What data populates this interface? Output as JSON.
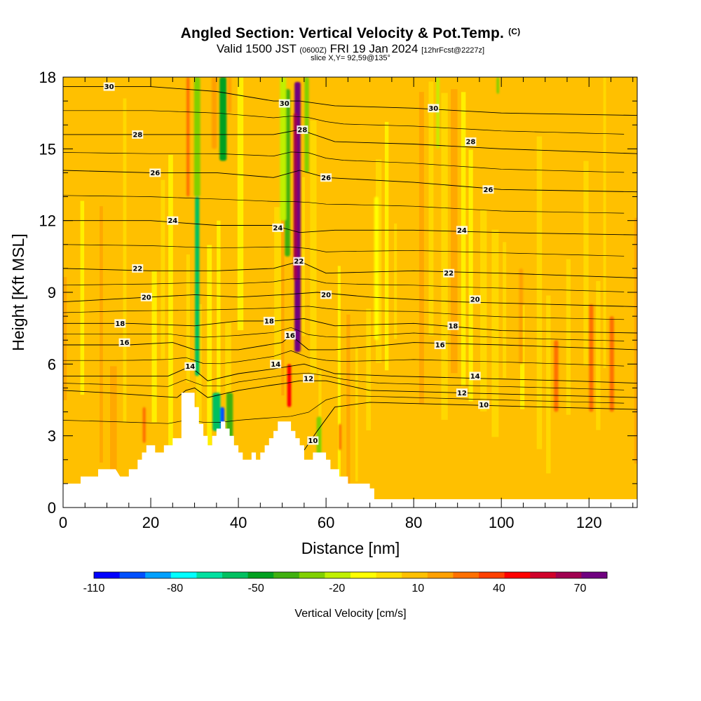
{
  "chart_data": {
    "type": "heatmap",
    "title": "Angled Section: Vertical Velocity & Pot.Temp.",
    "title_mark": "(C)",
    "subtitle_a": "Valid 1500 JST",
    "subtitle_b": "(0600Z)",
    "subtitle_c": "FRI 19 Jan 2024",
    "subtitle_d": "[12hrFcst@2227z]",
    "slice_note": "slice X,Y= 92,59@135°",
    "xlabel": "Distance [nm]",
    "ylabel": "Height [Kft MSL]",
    "xlim": [
      0,
      131
    ],
    "ylim": [
      0,
      18
    ],
    "xticks": [
      0,
      20,
      40,
      60,
      80,
      100,
      120
    ],
    "yticks": [
      0,
      3,
      6,
      9,
      12,
      15,
      18
    ],
    "background_color": "#ffc000",
    "colorbar": {
      "label": "Vertical Velocity [cm/s]",
      "tick_labels": [
        "-110",
        "-80",
        "-50",
        "-20",
        "10",
        "40",
        "70"
      ],
      "tick_values": [
        -110,
        -80,
        -50,
        -20,
        10,
        40,
        70
      ],
      "range": [
        -110,
        80
      ],
      "colors": [
        "#0000ff",
        "#0050ff",
        "#00a0ff",
        "#00ffff",
        "#00e0a0",
        "#00c060",
        "#00a020",
        "#40b010",
        "#80d000",
        "#c0f000",
        "#ffff00",
        "#ffe000",
        "#ffc000",
        "#ffa000",
        "#ff7000",
        "#ff4000",
        "#ff0000",
        "#d0002a",
        "#a00050",
        "#700080"
      ]
    },
    "terrain": [
      [
        0,
        1
      ],
      [
        4,
        1
      ],
      [
        4,
        1.3
      ],
      [
        8,
        1.3
      ],
      [
        8,
        1.6
      ],
      [
        12,
        1.6
      ],
      [
        13,
        1.3
      ],
      [
        15,
        1.3
      ],
      [
        15,
        1.6
      ],
      [
        17,
        1.6
      ],
      [
        17,
        2
      ],
      [
        18,
        2
      ],
      [
        18,
        2.3
      ],
      [
        19,
        2.3
      ],
      [
        19,
        2.6
      ],
      [
        21,
        2.6
      ],
      [
        21,
        2.3
      ],
      [
        23,
        2.3
      ],
      [
        23,
        2.6
      ],
      [
        25,
        2.6
      ],
      [
        25,
        2.9
      ],
      [
        27,
        2.9
      ],
      [
        27,
        4.8
      ],
      [
        30,
        4.8
      ],
      [
        30,
        4.2
      ],
      [
        31,
        4.2
      ],
      [
        31,
        3.5
      ],
      [
        32,
        3.5
      ],
      [
        32,
        3
      ],
      [
        33,
        3
      ],
      [
        33,
        2.6
      ],
      [
        34,
        2.6
      ],
      [
        34,
        3
      ],
      [
        35,
        3
      ],
      [
        35,
        3.3
      ],
      [
        36,
        3.3
      ],
      [
        36,
        3.6
      ],
      [
        37,
        3.6
      ],
      [
        37,
        3.3
      ],
      [
        38,
        3.3
      ],
      [
        38,
        3
      ],
      [
        39,
        3
      ],
      [
        39,
        2.6
      ],
      [
        40,
        2.6
      ],
      [
        40,
        2.3
      ],
      [
        41,
        2.3
      ],
      [
        41,
        2
      ],
      [
        43,
        2
      ],
      [
        43,
        2.3
      ],
      [
        44,
        2.3
      ],
      [
        44,
        2
      ],
      [
        45,
        2
      ],
      [
        45,
        2.3
      ],
      [
        46,
        2.3
      ],
      [
        46,
        2.6
      ],
      [
        47,
        2.6
      ],
      [
        47,
        2.9
      ],
      [
        48,
        2.9
      ],
      [
        48,
        3.2
      ],
      [
        49,
        3.2
      ],
      [
        49,
        3.6
      ],
      [
        52,
        3.6
      ],
      [
        52,
        3.2
      ],
      [
        53,
        3.2
      ],
      [
        53,
        2.9
      ],
      [
        54,
        2.9
      ],
      [
        54,
        2.6
      ],
      [
        55,
        2.6
      ],
      [
        55,
        2
      ],
      [
        57,
        2
      ],
      [
        57,
        2.3
      ],
      [
        60,
        2.3
      ],
      [
        60,
        2
      ],
      [
        61,
        2
      ],
      [
        61,
        1.6
      ],
      [
        63,
        1.6
      ],
      [
        63,
        1.3
      ],
      [
        65,
        1.3
      ],
      [
        65,
        1
      ],
      [
        70,
        1
      ],
      [
        70,
        0.8
      ],
      [
        71,
        0.8
      ],
      [
        71,
        0.35
      ],
      [
        131,
        0.35
      ]
    ],
    "vv_features": [
      {
        "x": 53.5,
        "y0": 6.5,
        "y1": 17.8,
        "w": 1.4,
        "value": 75
      },
      {
        "x": 53.0,
        "y0": 9.5,
        "y1": 16.5,
        "w": 0.8,
        "value": 65
      },
      {
        "x": 51.2,
        "y0": 10.5,
        "y1": 17.5,
        "w": 1.2,
        "value": -40
      },
      {
        "x": 50.2,
        "y0": 12.0,
        "y1": 18.0,
        "w": 1.4,
        "value": -20
      },
      {
        "x": 55.6,
        "y0": 14.0,
        "y1": 18.0,
        "w": 1.0,
        "value": -25
      },
      {
        "x": 51.6,
        "y0": 4.2,
        "y1": 6.0,
        "w": 0.9,
        "value": 45
      },
      {
        "x": 30.6,
        "y0": 5.5,
        "y1": 13.0,
        "w": 1.0,
        "value": -60
      },
      {
        "x": 30.6,
        "y0": 13.0,
        "y1": 18.0,
        "w": 1.4,
        "value": -25
      },
      {
        "x": 36.3,
        "y0": 3.0,
        "y1": 4.2,
        "w": 1.0,
        "value": -100
      },
      {
        "x": 35.0,
        "y0": 3.2,
        "y1": 4.8,
        "w": 1.8,
        "value": -55
      },
      {
        "x": 38.0,
        "y0": 2.4,
        "y1": 4.8,
        "w": 1.5,
        "value": -40
      },
      {
        "x": 36.5,
        "y0": 14.5,
        "y1": 18.0,
        "w": 1.6,
        "value": -45
      },
      {
        "x": 38.0,
        "y0": 16.5,
        "y1": 18.0,
        "w": 0.8,
        "value": 20
      },
      {
        "x": 28.5,
        "y0": 13.0,
        "y1": 18.0,
        "w": 0.7,
        "value": 25
      },
      {
        "x": 34.5,
        "y0": 15.0,
        "y1": 18.0,
        "w": 1.2,
        "value": 20
      },
      {
        "x": 18.5,
        "y0": 2.7,
        "y1": 4.2,
        "w": 0.7,
        "value": 30
      },
      {
        "x": 63.2,
        "y0": 2.4,
        "y1": 3.5,
        "w": 0.6,
        "value": 25
      },
      {
        "x": 58.4,
        "y0": 2.2,
        "y1": 3.8,
        "w": 1.1,
        "value": -25
      },
      {
        "x": 71.5,
        "y0": 7.0,
        "y1": 13.0,
        "w": 1.0,
        "value": -15
      },
      {
        "x": 85.5,
        "y0": 15.0,
        "y1": 18.0,
        "w": 0.7,
        "value": -20
      },
      {
        "x": 99.2,
        "y0": 17.3,
        "y1": 18.0,
        "w": 0.6,
        "value": -30
      },
      {
        "x": 112.5,
        "y0": 4.0,
        "y1": 7.0,
        "w": 1.0,
        "value": 25
      },
      {
        "x": 120.5,
        "y0": 4.0,
        "y1": 8.5,
        "w": 1.0,
        "value": 25
      },
      {
        "x": 125.2,
        "y0": 4.0,
        "y1": 8.0,
        "w": 1.0,
        "value": 25
      },
      {
        "x": 104.5,
        "y0": 6.0,
        "y1": 10.0,
        "w": 0.9,
        "value": 20
      }
    ],
    "contours": [
      {
        "value": 10,
        "label": "10",
        "show_label": true,
        "points": [
          [
            55,
            2.4
          ],
          [
            58,
            3.2
          ],
          [
            62,
            4.2
          ],
          [
            70,
            4.4
          ],
          [
            90,
            4.3
          ],
          [
            110,
            4.2
          ],
          [
            131,
            4.1
          ]
        ],
        "labels": [
          [
            57,
            2.8
          ],
          [
            96,
            4.3
          ]
        ]
      },
      {
        "value": 12,
        "label": "12",
        "show_label": true,
        "points": [
          [
            0,
            4.9
          ],
          [
            10,
            4.8
          ],
          [
            26,
            4.6
          ],
          [
            28,
            4.9
          ],
          [
            30,
            5.0
          ],
          [
            33,
            4.6
          ],
          [
            40,
            4.9
          ],
          [
            47,
            5.1
          ],
          [
            51,
            5.2
          ],
          [
            54,
            5.3
          ],
          [
            60,
            5.3
          ],
          [
            70,
            4.9
          ],
          [
            90,
            4.8
          ],
          [
            110,
            4.7
          ],
          [
            131,
            4.6
          ]
        ],
        "labels": [
          [
            56,
            5.4
          ],
          [
            91,
            4.8
          ]
        ]
      },
      {
        "value": 14,
        "label": "14",
        "show_label": true,
        "points": [
          [
            0,
            5.5
          ],
          [
            10,
            5.5
          ],
          [
            24,
            5.5
          ],
          [
            29,
            5.9
          ],
          [
            33,
            5.3
          ],
          [
            40,
            5.6
          ],
          [
            48,
            5.8
          ],
          [
            55,
            6.0
          ],
          [
            62,
            5.6
          ],
          [
            75,
            5.5
          ],
          [
            95,
            5.4
          ],
          [
            115,
            5.3
          ],
          [
            131,
            5.2
          ]
        ],
        "labels": [
          [
            29,
            5.9
          ],
          [
            48.5,
            6.0
          ],
          [
            94,
            5.5
          ]
        ]
      },
      {
        "value": 16,
        "label": "16",
        "show_label": true,
        "points": [
          [
            0,
            6.8
          ],
          [
            15,
            6.8
          ],
          [
            25,
            6.9
          ],
          [
            30,
            6.6
          ],
          [
            40,
            6.6
          ],
          [
            50,
            6.9
          ],
          [
            52,
            7.2
          ],
          [
            56,
            6.6
          ],
          [
            62,
            6.6
          ],
          [
            80,
            6.9
          ],
          [
            100,
            6.8
          ],
          [
            131,
            6.6
          ]
        ],
        "labels": [
          [
            14,
            6.9
          ],
          [
            51.8,
            7.2
          ],
          [
            86,
            6.8
          ]
        ]
      },
      {
        "value": 18,
        "label": "18",
        "show_label": true,
        "points": [
          [
            0,
            7.7
          ],
          [
            15,
            7.7
          ],
          [
            30,
            7.6
          ],
          [
            40,
            7.8
          ],
          [
            48,
            7.8
          ],
          [
            55,
            7.9
          ],
          [
            62,
            7.6
          ],
          [
            80,
            7.7
          ],
          [
            100,
            7.4
          ],
          [
            131,
            7.3
          ]
        ],
        "labels": [
          [
            13,
            7.7
          ],
          [
            47,
            7.8
          ],
          [
            89,
            7.6
          ]
        ]
      },
      {
        "value": 20,
        "label": "20",
        "show_label": true,
        "points": [
          [
            0,
            8.6
          ],
          [
            20,
            8.8
          ],
          [
            30,
            8.9
          ],
          [
            40,
            8.8
          ],
          [
            50,
            8.9
          ],
          [
            58,
            9.0
          ],
          [
            70,
            8.8
          ],
          [
            90,
            8.6
          ],
          [
            131,
            8.4
          ]
        ],
        "labels": [
          [
            19,
            8.8
          ],
          [
            60,
            8.9
          ],
          [
            94,
            8.7
          ]
        ]
      },
      {
        "value": 22,
        "label": "22",
        "show_label": true,
        "points": [
          [
            0,
            10.0
          ],
          [
            20,
            9.9
          ],
          [
            35,
            9.9
          ],
          [
            48,
            10.0
          ],
          [
            54,
            10.3
          ],
          [
            60,
            9.8
          ],
          [
            80,
            9.9
          ],
          [
            100,
            9.8
          ],
          [
            131,
            9.6
          ]
        ],
        "labels": [
          [
            17,
            10.0
          ],
          [
            53.8,
            10.3
          ],
          [
            88,
            9.8
          ]
        ]
      },
      {
        "value": 24,
        "label": "24",
        "show_label": true,
        "points": [
          [
            0,
            12.0
          ],
          [
            20,
            12.0
          ],
          [
            35,
            11.8
          ],
          [
            48,
            11.8
          ],
          [
            54,
            11.5
          ],
          [
            62,
            11.6
          ],
          [
            80,
            11.6
          ],
          [
            100,
            11.5
          ],
          [
            131,
            11.4
          ]
        ],
        "labels": [
          [
            25,
            12.0
          ],
          [
            49,
            11.7
          ],
          [
            91,
            11.6
          ]
        ]
      },
      {
        "value": 26,
        "label": "26",
        "show_label": true,
        "points": [
          [
            0,
            14.1
          ],
          [
            20,
            14.0
          ],
          [
            35,
            14.0
          ],
          [
            48,
            13.8
          ],
          [
            54,
            14.1
          ],
          [
            60,
            13.8
          ],
          [
            80,
            13.6
          ],
          [
            100,
            13.3
          ],
          [
            131,
            13.2
          ]
        ],
        "labels": [
          [
            21,
            14.0
          ],
          [
            60,
            13.8
          ],
          [
            97,
            13.3
          ]
        ]
      },
      {
        "value": 28,
        "label": "28",
        "show_label": true,
        "points": [
          [
            0,
            15.6
          ],
          [
            20,
            15.6
          ],
          [
            35,
            15.6
          ],
          [
            48,
            15.6
          ],
          [
            54,
            15.8
          ],
          [
            62,
            15.3
          ],
          [
            80,
            15.2
          ],
          [
            100,
            15.0
          ],
          [
            131,
            14.8
          ]
        ],
        "labels": [
          [
            17,
            15.6
          ],
          [
            54.6,
            15.8
          ],
          [
            93,
            15.3
          ]
        ]
      },
      {
        "value": 30,
        "label": "30",
        "show_label": true,
        "points": [
          [
            0,
            17.6
          ],
          [
            20,
            17.6
          ],
          [
            35,
            17.4
          ],
          [
            48,
            17.0
          ],
          [
            54,
            17.0
          ],
          [
            62,
            16.8
          ],
          [
            80,
            16.7
          ],
          [
            100,
            16.5
          ],
          [
            131,
            16.4
          ]
        ],
        "labels": [
          [
            10.5,
            17.6
          ],
          [
            50.5,
            16.9
          ],
          [
            84.5,
            16.7
          ]
        ]
      }
    ]
  }
}
